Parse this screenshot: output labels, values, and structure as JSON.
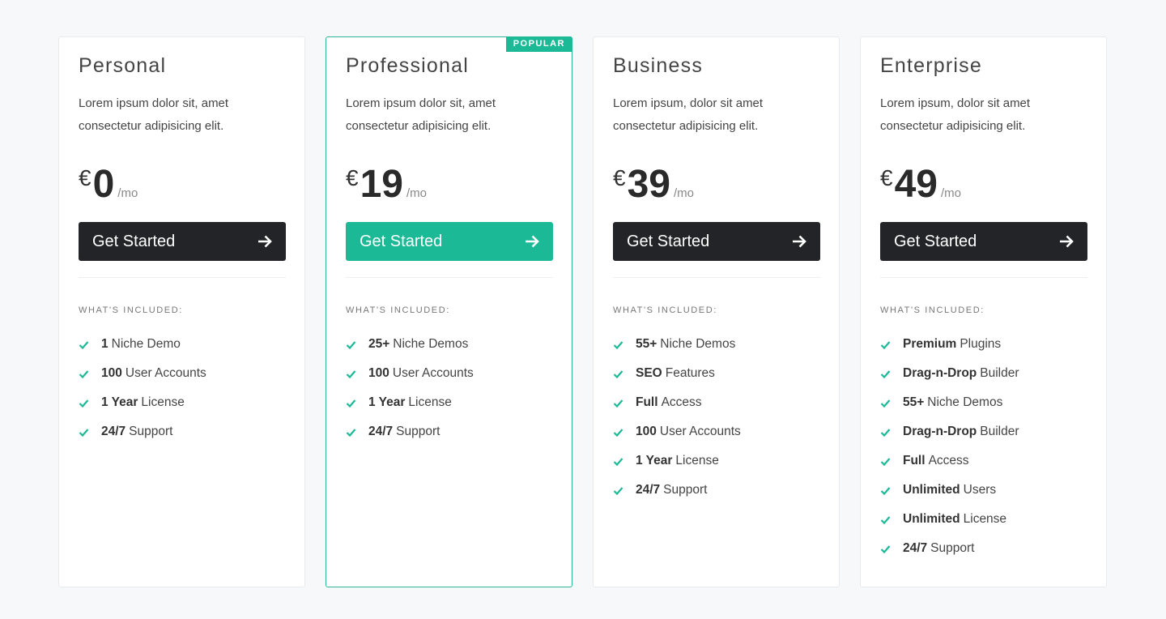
{
  "accent_color": "#1cb997",
  "dark_button_color": "#222427",
  "section_label": "WHAT'S INCLUDED:",
  "plans": [
    {
      "name": "Personal",
      "description": "Lorem ipsum dolor sit, amet consectetur adipisicing elit.",
      "currency": "€",
      "price": "0",
      "period": "/mo",
      "button_label": "Get Started",
      "popular": false,
      "features": [
        {
          "bold": "1",
          "text": "Niche Demo"
        },
        {
          "bold": "100",
          "text": "User Accounts"
        },
        {
          "bold": "1 Year",
          "text": "License"
        },
        {
          "bold": "24/7",
          "text": "Support"
        }
      ]
    },
    {
      "name": "Professional",
      "badge": "POPULAR",
      "description": "Lorem ipsum dolor sit, amet consectetur adipisicing elit.",
      "currency": "€",
      "price": "19",
      "period": "/mo",
      "button_label": "Get Started",
      "popular": true,
      "features": [
        {
          "bold": "25+",
          "text": "Niche Demos"
        },
        {
          "bold": "100",
          "text": "User Accounts"
        },
        {
          "bold": "1 Year",
          "text": "License"
        },
        {
          "bold": "24/7",
          "text": "Support"
        }
      ]
    },
    {
      "name": "Business",
      "description": "Lorem ipsum, dolor sit amet consectetur adipisicing elit.",
      "currency": "€",
      "price": "39",
      "period": "/mo",
      "button_label": "Get Started",
      "popular": false,
      "features": [
        {
          "bold": "55+",
          "text": "Niche Demos"
        },
        {
          "bold": "SEO",
          "text": "Features"
        },
        {
          "bold": "Full",
          "text": "Access"
        },
        {
          "bold": "100",
          "text": "User Accounts"
        },
        {
          "bold": "1 Year",
          "text": "License"
        },
        {
          "bold": "24/7",
          "text": "Support"
        }
      ]
    },
    {
      "name": "Enterprise",
      "description": "Lorem ipsum, dolor sit amet consectetur adipisicing elit.",
      "currency": "€",
      "price": "49",
      "period": "/mo",
      "button_label": "Get Started",
      "popular": false,
      "features": [
        {
          "bold": "Premium",
          "text": "Plugins"
        },
        {
          "bold": "Drag-n-Drop",
          "text": "Builder"
        },
        {
          "bold": "55+",
          "text": "Niche Demos"
        },
        {
          "bold": "Drag-n-Drop",
          "text": "Builder"
        },
        {
          "bold": "Full",
          "text": "Access"
        },
        {
          "bold": "Unlimited",
          "text": "Users"
        },
        {
          "bold": "Unlimited",
          "text": "License"
        },
        {
          "bold": "24/7",
          "text": "Support"
        }
      ]
    }
  ]
}
